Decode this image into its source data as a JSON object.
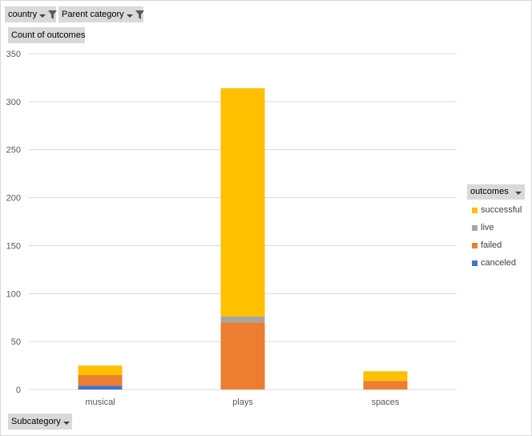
{
  "filters": {
    "country_label": "country",
    "parent_label": "Parent category",
    "values_label": "Count of outcomes",
    "axis_field_label": "Subcategory"
  },
  "legend": {
    "title": "outcomes"
  },
  "colors": {
    "successful": "#ffc000",
    "live": "#a5a5a5",
    "failed": "#ed7d31",
    "canceled": "#4472c4",
    "grid": "#d9d9d9"
  },
  "chart_data": {
    "type": "bar",
    "stacked": true,
    "title": "",
    "xlabel": "",
    "ylabel": "",
    "categories": [
      "musical",
      "plays",
      "spaces"
    ],
    "series": [
      {
        "name": "canceled",
        "values": [
          4,
          0,
          0
        ]
      },
      {
        "name": "failed",
        "values": [
          11,
          70,
          9
        ]
      },
      {
        "name": "live",
        "values": [
          0,
          6,
          0
        ]
      },
      {
        "name": "successful",
        "values": [
          10,
          238,
          10
        ]
      }
    ],
    "ylim": [
      0,
      350
    ],
    "yticks": [
      "0",
      "50",
      "100",
      "150",
      "200",
      "250",
      "300",
      "350"
    ],
    "grid": true,
    "legend_position": "right"
  }
}
